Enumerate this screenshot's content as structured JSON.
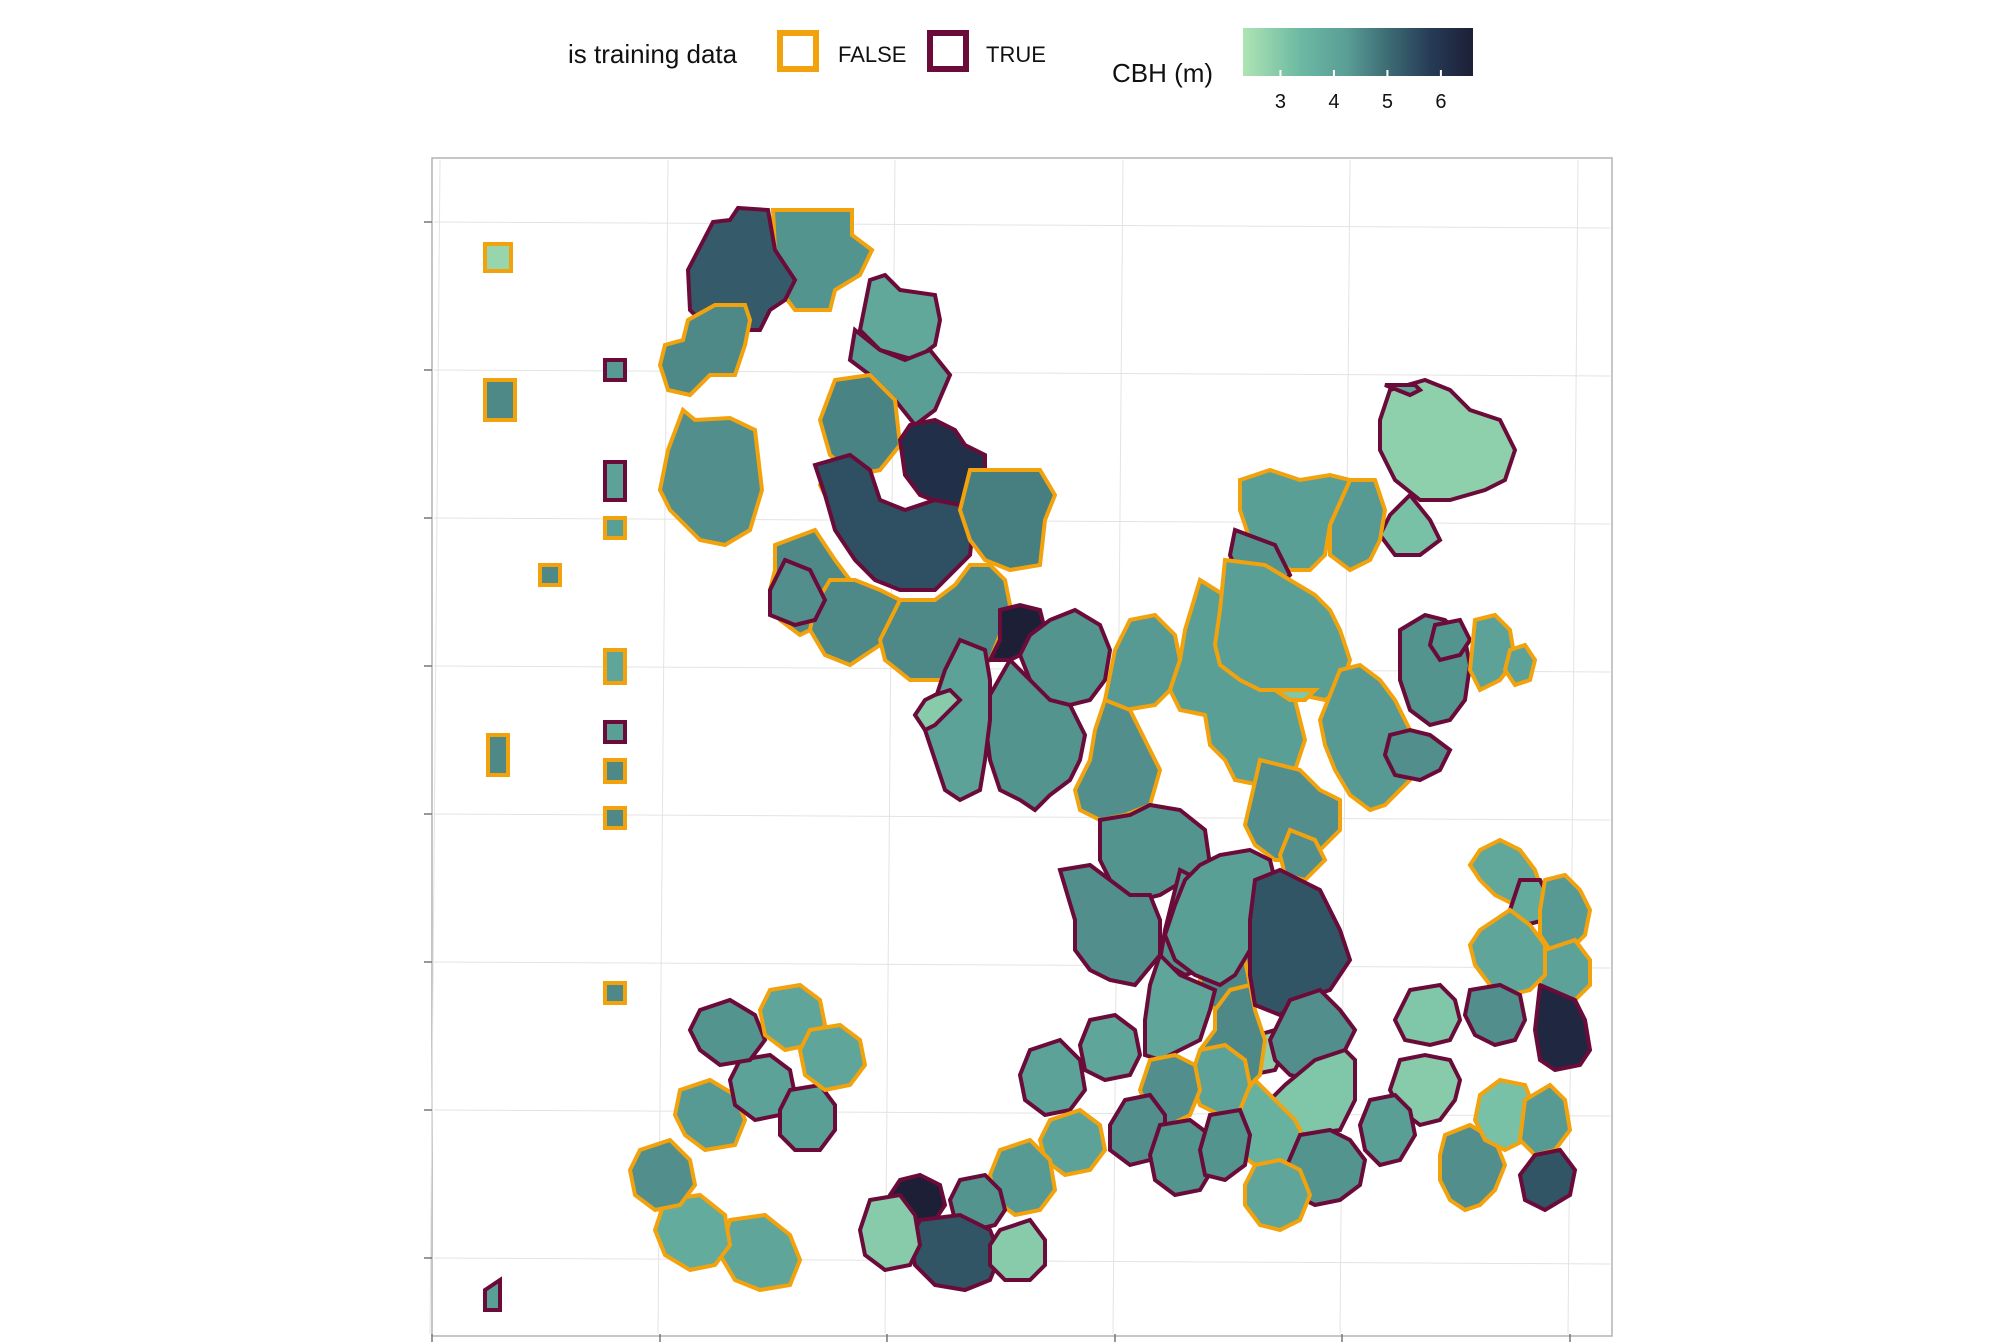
{
  "chart_data": {
    "type": "choropleth-map",
    "title": "",
    "xlabel": "",
    "ylabel": "",
    "grid": true,
    "legend_placement": "top",
    "legend_training": {
      "title": "is training data",
      "entries": [
        {
          "label": "FALSE",
          "outline_color": "#f2a20d"
        },
        {
          "label": "TRUE",
          "outline_color": "#6b0b3a"
        }
      ]
    },
    "legend_color": {
      "title": "CBH (m)",
      "range": [
        2.3,
        6.6
      ],
      "ticks": [
        3,
        4,
        5,
        6
      ],
      "stops": [
        "#aee4b3",
        "#6cb9a3",
        "#5a9e96",
        "#3e6e76",
        "#263a55",
        "#1d1f36"
      ]
    },
    "regions": [
      {
        "cbh": 2.6,
        "training": false
      },
      {
        "cbh": 4.2,
        "training": false
      },
      {
        "cbh": 5.2,
        "training": true
      },
      {
        "cbh": 4.4,
        "training": false
      },
      {
        "cbh": 4.3,
        "training": false
      },
      {
        "cbh": 3.7,
        "training": true
      },
      {
        "cbh": 4.0,
        "training": true
      },
      {
        "cbh": 4.5,
        "training": false
      },
      {
        "cbh": 4.7,
        "training": false
      },
      {
        "cbh": 6.1,
        "training": true
      },
      {
        "cbh": 5.4,
        "training": true
      },
      {
        "cbh": 4.6,
        "training": false
      },
      {
        "cbh": 4.4,
        "training": false
      },
      {
        "cbh": 4.4,
        "training": false
      },
      {
        "cbh": 4.4,
        "training": false
      },
      {
        "cbh": 6.6,
        "training": true
      },
      {
        "cbh": 4.3,
        "training": true
      },
      {
        "cbh": 4.2,
        "training": true
      },
      {
        "cbh": 4.1,
        "training": false
      },
      {
        "cbh": 4.0,
        "training": false
      },
      {
        "cbh": 4.3,
        "training": false
      },
      {
        "cbh": 4.2,
        "training": true
      },
      {
        "cbh": 3.9,
        "training": true
      },
      {
        "cbh": 2.8,
        "training": true
      },
      {
        "cbh": 4.2,
        "training": true
      },
      {
        "cbh": 4.3,
        "training": true
      },
      {
        "cbh": 4.2,
        "training": true
      },
      {
        "cbh": 4.4,
        "training": false
      },
      {
        "cbh": 4.4,
        "training": false
      },
      {
        "cbh": 4.3,
        "training": false
      },
      {
        "cbh": 4.3,
        "training": false
      },
      {
        "cbh": 2.7,
        "training": true
      },
      {
        "cbh": 4.0,
        "training": true
      },
      {
        "cbh": 3.8,
        "training": true
      },
      {
        "cbh": 4.4,
        "training": false
      },
      {
        "cbh": 5.3,
        "training": true
      },
      {
        "cbh": 4.3,
        "training": true
      },
      {
        "cbh": 2.9,
        "training": true
      },
      {
        "cbh": 3.4,
        "training": false
      },
      {
        "cbh": 2.7,
        "training": true
      },
      {
        "cbh": 3.0,
        "training": true
      },
      {
        "cbh": 4.1,
        "training": false
      },
      {
        "cbh": 4.0,
        "training": false
      },
      {
        "cbh": 4.2,
        "training": true
      },
      {
        "cbh": 4.0,
        "training": false
      },
      {
        "cbh": 2.9,
        "training": false
      },
      {
        "cbh": 4.1,
        "training": false
      },
      {
        "cbh": 4.2,
        "training": true
      },
      {
        "cbh": 3.8,
        "training": true
      },
      {
        "cbh": 4.2,
        "training": true
      },
      {
        "cbh": 3.9,
        "training": false
      },
      {
        "cbh": 3.9,
        "training": false
      },
      {
        "cbh": 4.3,
        "training": true
      },
      {
        "cbh": 3.7,
        "training": false
      },
      {
        "cbh": 3.6,
        "training": true
      },
      {
        "cbh": 4.1,
        "training": false
      },
      {
        "cbh": 3.9,
        "training": false
      },
      {
        "cbh": 6.3,
        "training": true
      },
      {
        "cbh": 3.8,
        "training": false
      },
      {
        "cbh": 4.3,
        "training": true
      },
      {
        "cbh": 2.9,
        "training": true
      },
      {
        "cbh": 2.8,
        "training": true
      },
      {
        "cbh": 4.3,
        "training": false
      },
      {
        "cbh": 3.0,
        "training": false
      },
      {
        "cbh": 4.1,
        "training": false
      },
      {
        "cbh": 5.3,
        "training": true
      },
      {
        "cbh": 4.0,
        "training": true
      },
      {
        "cbh": 4.2,
        "training": true
      },
      {
        "cbh": 3.8,
        "training": false
      },
      {
        "cbh": 3.9,
        "training": false
      },
      {
        "cbh": 4.3,
        "training": false
      },
      {
        "cbh": 4.3,
        "training": true
      },
      {
        "cbh": 4.2,
        "training": true
      },
      {
        "cbh": 4.2,
        "training": true
      },
      {
        "cbh": 3.8,
        "training": true
      },
      {
        "cbh": 3.9,
        "training": true
      },
      {
        "cbh": 3.9,
        "training": false
      },
      {
        "cbh": 4.1,
        "training": false
      },
      {
        "cbh": 4.2,
        "training": true
      },
      {
        "cbh": 6.6,
        "training": true
      },
      {
        "cbh": 5.3,
        "training": true
      },
      {
        "cbh": 2.8,
        "training": true
      },
      {
        "cbh": 2.8,
        "training": true
      },
      {
        "cbh": 3.8,
        "training": false
      },
      {
        "cbh": 3.6,
        "training": false
      },
      {
        "cbh": 4.3,
        "training": false
      },
      {
        "cbh": 4.1,
        "training": false
      },
      {
        "cbh": 3.9,
        "training": true
      },
      {
        "cbh": 4.0,
        "training": true
      },
      {
        "cbh": 4.2,
        "training": true
      },
      {
        "cbh": 3.8,
        "training": false
      },
      {
        "cbh": 3.8,
        "training": false
      },
      {
        "cbh": 4.0,
        "training": true
      },
      {
        "cbh": 4.1,
        "training": true
      },
      {
        "cbh": 3.9,
        "training": true
      },
      {
        "cbh": 4.0,
        "training": false
      },
      {
        "cbh": 3.8,
        "training": false
      },
      {
        "cbh": 4.0,
        "training": true
      },
      {
        "cbh": 4.4,
        "training": false
      },
      {
        "cbh": 4.4,
        "training": false
      },
      {
        "cbh": 4.4,
        "training": false
      },
      {
        "cbh": 4.4,
        "training": false
      },
      {
        "cbh": 4.4,
        "training": false
      },
      {
        "cbh": 4.4,
        "training": false
      },
      {
        "cbh": 4.4,
        "training": false
      },
      {
        "cbh": 4.4,
        "training": false
      },
      {
        "cbh": 4.4,
        "training": false
      },
      {
        "cbh": 4.4,
        "training": false
      }
    ]
  }
}
